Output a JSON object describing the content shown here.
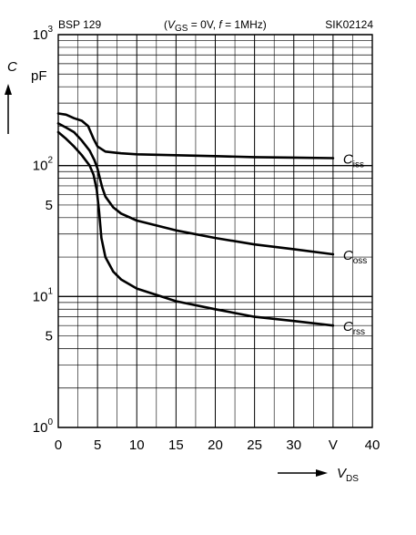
{
  "chart_data": {
    "type": "line",
    "part_number": "BSP 129",
    "conditions": {
      "vgs_text": "V",
      "vgs_sub": "GS",
      "vgs_value": " = 0V, ",
      "f_text": "f",
      "f_value": " = 1MHz"
    },
    "doc_code": "SIK02124",
    "yaxis": {
      "symbol": "C",
      "unit": "pF",
      "scale": "log",
      "range": [
        1,
        1000
      ]
    },
    "xaxis": {
      "symbol": "V",
      "sub": "DS",
      "unit": "V",
      "range": [
        0,
        40
      ]
    },
    "y_ticks": [
      {
        "value": 1000,
        "base": "10",
        "exp": "3"
      },
      {
        "value": 100,
        "base": "10",
        "exp": "2"
      },
      {
        "value": 50,
        "base": "5",
        "exp": ""
      },
      {
        "value": 10,
        "base": "10",
        "exp": "1"
      },
      {
        "value": 5,
        "base": "5",
        "exp": ""
      },
      {
        "value": 1,
        "base": "10",
        "exp": "0"
      }
    ],
    "x_ticks": [
      {
        "value": 0,
        "label": "0"
      },
      {
        "value": 5,
        "label": "5"
      },
      {
        "value": 10,
        "label": "10"
      },
      {
        "value": 15,
        "label": "15"
      },
      {
        "value": 20,
        "label": "20"
      },
      {
        "value": 25,
        "label": "25"
      },
      {
        "value": 30,
        "label": "30"
      },
      {
        "value": 35,
        "label": "V"
      },
      {
        "value": 40,
        "label": "40"
      }
    ],
    "grid": true,
    "series": [
      {
        "name": "C",
        "sub": "iss",
        "points": [
          [
            0,
            250
          ],
          [
            1,
            245
          ],
          [
            2,
            230
          ],
          [
            3,
            220
          ],
          [
            3.8,
            200
          ],
          [
            4.5,
            160
          ],
          [
            5,
            140
          ],
          [
            6,
            128
          ],
          [
            8,
            124
          ],
          [
            10,
            122
          ],
          [
            15,
            120
          ],
          [
            20,
            118
          ],
          [
            25,
            116
          ],
          [
            30,
            115
          ],
          [
            35,
            114
          ]
        ]
      },
      {
        "name": "C",
        "sub": "oss",
        "points": [
          [
            0,
            210
          ],
          [
            1,
            195
          ],
          [
            2,
            180
          ],
          [
            3,
            155
          ],
          [
            4,
            130
          ],
          [
            4.6,
            110
          ],
          [
            5,
            95
          ],
          [
            5.3,
            80
          ],
          [
            5.6,
            68
          ],
          [
            6,
            58
          ],
          [
            7,
            48
          ],
          [
            8,
            43
          ],
          [
            10,
            38
          ],
          [
            15,
            32
          ],
          [
            20,
            28
          ],
          [
            25,
            25
          ],
          [
            30,
            23
          ],
          [
            35,
            21
          ]
        ]
      },
      {
        "name": "C",
        "sub": "rss",
        "points": [
          [
            0,
            180
          ],
          [
            1,
            160
          ],
          [
            2,
            140
          ],
          [
            3,
            120
          ],
          [
            4,
            100
          ],
          [
            4.5,
            85
          ],
          [
            4.9,
            65
          ],
          [
            5.2,
            45
          ],
          [
            5.5,
            28
          ],
          [
            6,
            20
          ],
          [
            7,
            15.5
          ],
          [
            8,
            13.5
          ],
          [
            10,
            11.5
          ],
          [
            15,
            9.2
          ],
          [
            20,
            8
          ],
          [
            25,
            7
          ],
          [
            30,
            6.5
          ],
          [
            35,
            6
          ]
        ]
      }
    ]
  }
}
